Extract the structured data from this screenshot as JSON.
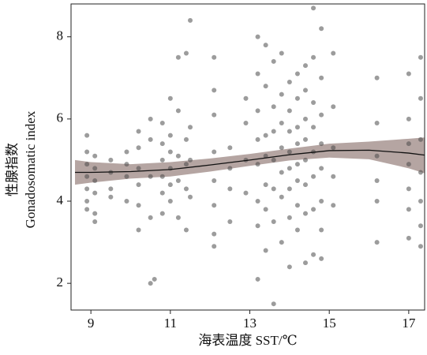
{
  "chart_data": {
    "type": "scatter",
    "xlabel": "海表温度 SST/℃",
    "ylabel": "性腺指数",
    "ylabel_en": "Gonadosomatic index",
    "xlim": [
      8.5,
      17.4
    ],
    "ylim": [
      1.35,
      8.8
    ],
    "xticks": [
      9,
      11,
      13,
      15,
      17
    ],
    "yticks": [
      2,
      4,
      6,
      8
    ],
    "points": {
      "color": "#4a4a4a",
      "x": [
        8.9,
        8.9,
        8.9,
        8.9,
        8.9,
        8.9,
        8.9,
        9.1,
        9.1,
        9.1,
        9.1,
        9.1,
        9.1,
        9.5,
        9.5,
        9.5,
        9.5,
        9.9,
        9.9,
        9.9,
        9.9,
        10.2,
        10.2,
        10.2,
        10.2,
        10.2,
        10.2,
        10.5,
        10.5,
        10.5,
        10.5,
        10.5,
        10.6,
        10.8,
        10.8,
        10.8,
        10.8,
        10.8,
        10.8,
        11.0,
        11.0,
        11.0,
        11.0,
        11.0,
        11.0,
        11.2,
        11.2,
        11.2,
        11.2,
        11.2,
        11.4,
        11.4,
        11.4,
        11.4,
        11.4,
        11.5,
        11.5,
        11.5,
        11.5,
        12.1,
        12.1,
        12.1,
        12.1,
        12.1,
        12.1,
        12.1,
        12.1,
        12.5,
        12.5,
        12.5,
        12.5,
        12.9,
        12.9,
        12.9,
        12.9,
        13.2,
        13.2,
        13.2,
        13.2,
        13.2,
        13.2,
        13.2,
        13.2,
        13.4,
        13.4,
        13.4,
        13.4,
        13.4,
        13.4,
        13.4,
        13.6,
        13.6,
        13.6,
        13.6,
        13.6,
        13.6,
        13.6,
        13.8,
        13.8,
        13.8,
        13.8,
        13.8,
        13.8,
        13.8,
        14.0,
        14.0,
        14.0,
        14.0,
        14.0,
        14.0,
        14.0,
        14.0,
        14.2,
        14.2,
        14.2,
        14.2,
        14.2,
        14.2,
        14.2,
        14.2,
        14.4,
        14.4,
        14.4,
        14.4,
        14.4,
        14.4,
        14.4,
        14.4,
        14.6,
        14.6,
        14.6,
        14.6,
        14.6,
        14.6,
        14.6,
        14.6,
        14.8,
        14.8,
        14.8,
        14.8,
        14.8,
        14.8,
        14.8,
        14.8,
        15.1,
        15.1,
        15.1,
        15.1,
        15.1,
        16.2,
        16.2,
        16.2,
        16.2,
        16.2,
        16.2,
        17.0,
        17.0,
        17.0,
        17.0,
        17.0,
        17.0,
        17.0,
        17.3,
        17.3,
        17.3,
        17.3,
        17.3,
        17.3,
        17.3
      ],
      "y": [
        5.6,
        5.2,
        4.9,
        4.6,
        4.3,
        4.0,
        3.8,
        5.1,
        4.8,
        4.5,
        4.2,
        3.7,
        3.5,
        5.0,
        4.7,
        4.3,
        4.1,
        5.2,
        4.9,
        4.6,
        4.0,
        5.7,
        5.3,
        4.8,
        4.4,
        3.9,
        3.3,
        6.0,
        5.5,
        4.6,
        3.6,
        2.0,
        2.1,
        5.9,
        5.4,
        5.0,
        4.6,
        4.2,
        3.7,
        6.5,
        5.6,
        5.2,
        4.8,
        4.4,
        4.0,
        7.5,
        6.2,
        5.1,
        4.5,
        3.6,
        7.6,
        5.5,
        4.9,
        4.3,
        3.3,
        8.4,
        5.8,
        5.0,
        4.1,
        7.5,
        6.7,
        6.1,
        5.2,
        4.5,
        3.9,
        3.2,
        2.9,
        5.3,
        4.8,
        4.3,
        3.5,
        6.5,
        5.9,
        5.0,
        4.2,
        8.0,
        7.1,
        6.2,
        5.5,
        4.9,
        4.0,
        3.4,
        2.1,
        7.8,
        6.8,
        5.6,
        5.1,
        4.4,
        3.8,
        2.8,
        7.4,
        6.3,
        5.7,
        5.0,
        4.3,
        3.5,
        1.5,
        7.6,
        6.6,
        5.9,
        5.3,
        4.7,
        4.1,
        3.0,
        6.9,
        6.2,
        5.7,
        5.2,
        4.8,
        4.3,
        3.6,
        2.4,
        7.1,
        6.5,
        5.8,
        5.4,
        4.9,
        4.5,
        3.9,
        3.3,
        7.3,
        6.7,
        6.0,
        5.5,
        5.0,
        4.4,
        3.7,
        2.5,
        8.7,
        7.5,
        6.4,
        5.8,
        5.2,
        4.6,
        3.8,
        2.7,
        8.2,
        7.0,
        6.1,
        5.4,
        4.8,
        4.0,
        3.3,
        2.6,
        7.6,
        6.3,
        5.3,
        4.6,
        3.9,
        7.0,
        5.9,
        5.1,
        4.5,
        4.0,
        3.0,
        7.1,
        6.0,
        5.4,
        4.9,
        4.3,
        3.8,
        3.1,
        7.5,
        6.5,
        5.5,
        4.7,
        4.0,
        3.4,
        2.9
      ]
    },
    "fit": {
      "color": "#111111",
      "band_color": "#b5a5a2",
      "x": [
        8.6,
        9,
        10,
        11,
        12,
        13,
        14,
        15,
        16,
        17,
        17.4
      ],
      "y": [
        4.7,
        4.7,
        4.72,
        4.77,
        4.88,
        5.0,
        5.13,
        5.23,
        5.24,
        5.17,
        5.12
      ],
      "lower": [
        4.4,
        4.45,
        4.55,
        4.6,
        4.72,
        4.86,
        4.99,
        5.06,
        5.02,
        4.8,
        4.68
      ],
      "upper": [
        5.0,
        4.95,
        4.9,
        4.95,
        5.04,
        5.15,
        5.28,
        5.4,
        5.45,
        5.52,
        5.55
      ]
    }
  }
}
